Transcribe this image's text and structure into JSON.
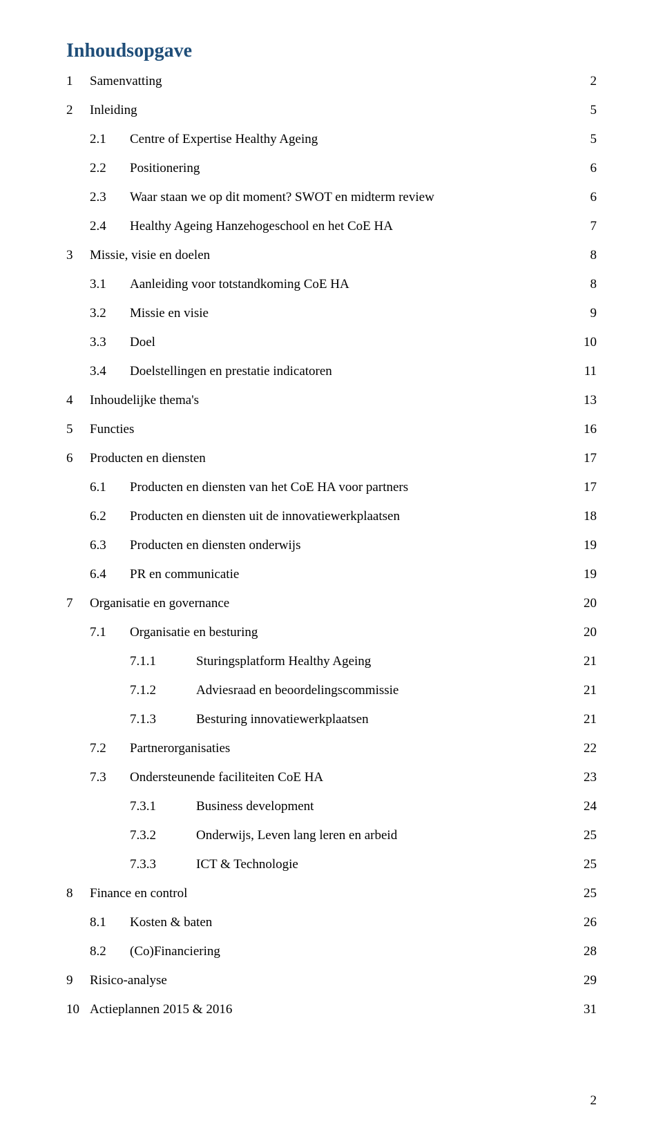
{
  "title": "Inhoudsopgave",
  "title_color": "#1f4e79",
  "background_color": "#ffffff",
  "text_color": "#000000",
  "font_family": "Georgia, serif",
  "body_fontsize": 19,
  "title_fontsize": 28,
  "page_number": "2",
  "toc": [
    {
      "level": 1,
      "num": "1",
      "label": "Samenvatting",
      "page": "2"
    },
    {
      "level": 1,
      "num": "2",
      "label": "Inleiding",
      "page": "5"
    },
    {
      "level": 2,
      "num": "2.1",
      "label": "Centre of Expertise Healthy Ageing",
      "page": "5"
    },
    {
      "level": 2,
      "num": "2.2",
      "label": "Positionering",
      "page": "6"
    },
    {
      "level": 2,
      "num": "2.3",
      "label": "Waar staan we op dit moment? SWOT en midterm review",
      "page": "6"
    },
    {
      "level": 2,
      "num": "2.4",
      "label": "Healthy Ageing Hanzehogeschool en het CoE HA",
      "page": "7"
    },
    {
      "level": 1,
      "num": "3",
      "label": "Missie, visie en doelen",
      "page": "8"
    },
    {
      "level": 2,
      "num": "3.1",
      "label": "Aanleiding voor totstandkoming CoE HA",
      "page": "8"
    },
    {
      "level": 2,
      "num": "3.2",
      "label": "Missie en visie",
      "page": "9"
    },
    {
      "level": 2,
      "num": "3.3",
      "label": "Doel",
      "page": "10"
    },
    {
      "level": 2,
      "num": "3.4",
      "label": "Doelstellingen en prestatie indicatoren",
      "page": "11"
    },
    {
      "level": 1,
      "num": "4",
      "label": "Inhoudelijke thema's",
      "page": "13"
    },
    {
      "level": 1,
      "num": "5",
      "label": "Functies",
      "page": "16"
    },
    {
      "level": 1,
      "num": "6",
      "label": "Producten en diensten",
      "page": "17"
    },
    {
      "level": 2,
      "num": "6.1",
      "label": "Producten en diensten van het CoE HA voor partners",
      "page": "17"
    },
    {
      "level": 2,
      "num": "6.2",
      "label": "Producten en diensten uit de innovatiewerkplaatsen",
      "page": "18"
    },
    {
      "level": 2,
      "num": "6.3",
      "label": "Producten en diensten onderwijs",
      "page": "19"
    },
    {
      "level": 2,
      "num": "6.4",
      "label": "PR en communicatie",
      "page": "19"
    },
    {
      "level": 1,
      "num": "7",
      "label": "Organisatie en governance",
      "page": "20"
    },
    {
      "level": 2,
      "num": "7.1",
      "label": "Organisatie en besturing",
      "page": "20"
    },
    {
      "level": 3,
      "num": "7.1.1",
      "label": "Sturingsplatform Healthy Ageing",
      "page": "21"
    },
    {
      "level": 3,
      "num": "7.1.2",
      "label": "Adviesraad en beoordelingscommissie",
      "page": "21"
    },
    {
      "level": 3,
      "num": "7.1.3",
      "label": "Besturing innovatiewerkplaatsen",
      "page": "21"
    },
    {
      "level": 2,
      "num": "7.2",
      "label": "Partnerorganisaties",
      "page": "22"
    },
    {
      "level": 2,
      "num": "7.3",
      "label": "Ondersteunende faciliteiten CoE HA",
      "page": "23"
    },
    {
      "level": 3,
      "num": "7.3.1",
      "label": "Business development",
      "page": "24"
    },
    {
      "level": 3,
      "num": "7.3.2",
      "label": "Onderwijs, Leven lang leren en arbeid",
      "page": "25"
    },
    {
      "level": 3,
      "num": "7.3.3",
      "label": "ICT & Technologie",
      "page": "25"
    },
    {
      "level": 1,
      "num": "8",
      "label": "Finance en control",
      "page": "25"
    },
    {
      "level": 2,
      "num": "8.1",
      "label": "Kosten & baten",
      "page": "26"
    },
    {
      "level": 2,
      "num": "8.2",
      "label": "(Co)Financiering",
      "page": "28"
    },
    {
      "level": 1,
      "num": "9",
      "label": "Risico-analyse",
      "page": "29"
    },
    {
      "level": 1,
      "num": "10",
      "label": "Actieplannen 2015 & 2016",
      "page": "31"
    }
  ]
}
